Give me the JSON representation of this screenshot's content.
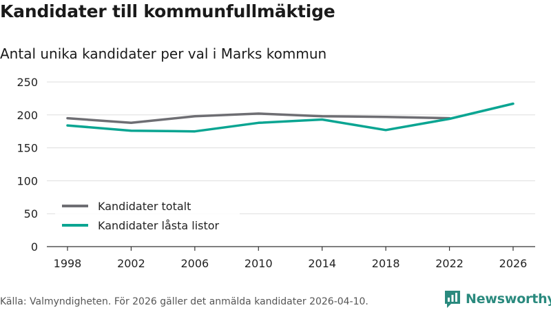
{
  "header": {
    "title": "Kandidater till kommunfullmäktige",
    "subtitle": "Antal unika kandidater per val i Marks kommun"
  },
  "footer": {
    "source": "Källa: Valmyndigheten. För 2026 gäller det anmälda kandidater 2026-04-10.",
    "brand": "Newsworthy"
  },
  "colors": {
    "totalt": "#6e6e73",
    "lasta": "#0aa592",
    "grid": "#dddddd",
    "axis": "#333333"
  },
  "chart_data": {
    "type": "line",
    "title": "Kandidater till kommunfullmäktige",
    "subtitle": "Antal unika kandidater per val i Marks kommun",
    "xlabel": "",
    "ylabel": "",
    "x": [
      "1998",
      "2002",
      "2006",
      "2010",
      "2014",
      "2018",
      "2022",
      "2026"
    ],
    "ylim": [
      0,
      250
    ],
    "yticks": [
      0,
      50,
      100,
      150,
      200,
      250
    ],
    "grid": true,
    "legend_position": "bottom-left",
    "series": [
      {
        "name": "Kandidater totalt",
        "color": "#6e6e73",
        "values": [
          195,
          188,
          198,
          202,
          198,
          197,
          195,
          null
        ]
      },
      {
        "name": "Kandidater låsta listor",
        "color": "#0aa592",
        "values": [
          184,
          176,
          175,
          188,
          193,
          177,
          194,
          217
        ]
      }
    ]
  }
}
